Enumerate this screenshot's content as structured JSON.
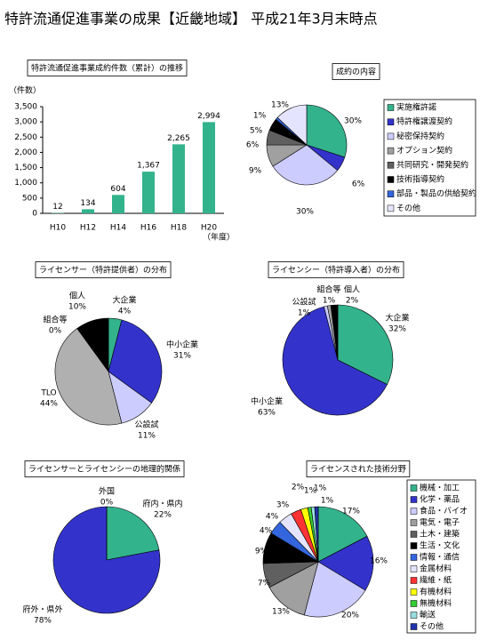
{
  "title": "特許流通促進事業の成果【近畿地域】 平成21年3月末時点",
  "chart_data": [
    {
      "type": "bar",
      "title": "特許流通促進事業成約件数（累計）の推移",
      "y_label": "（件数）",
      "x_label": "（年度）",
      "categories": [
        "H10",
        "H12",
        "H14",
        "H16",
        "H18",
        "H20"
      ],
      "values": [
        12,
        134,
        604,
        1367,
        2265,
        2994
      ],
      "value_labels": [
        "12",
        "134",
        "604",
        "1,367",
        "2,265",
        "2,994"
      ],
      "color": "#33b38c",
      "ylim": [
        0,
        3500
      ],
      "yticks": [
        0,
        500,
        {
          "value": 1000,
          "label": "1,000"
        },
        {
          "value": 1500,
          "label": "1,500"
        },
        {
          "value": 2000,
          "label": "2,000"
        },
        {
          "value": 2500,
          "label": "2,500"
        },
        {
          "value": 3000,
          "label": "3,000"
        },
        {
          "value": 3500,
          "label": "3,500"
        }
      ]
    },
    {
      "type": "pie",
      "title": "成約の内容",
      "legend": true,
      "categories": [
        "実施権許諾",
        "特許権譲渡契約",
        "秘密保持契約",
        "オプション契約",
        "共同研究・開発契約",
        "技術指導契約",
        "部品・製品の供給契約",
        "その他"
      ],
      "values": [
        30,
        6,
        30,
        9,
        6,
        5,
        1,
        13
      ],
      "value_labels": [
        "30%",
        "6%",
        "30%",
        "9%",
        "6%",
        "5%",
        "1%",
        "13%"
      ],
      "colors": [
        "#33b38c",
        "#3333cc",
        "#ccccff",
        "#a0a0a0",
        "#606060",
        "#000000",
        "#3366dd",
        "#e4e4ff"
      ]
    },
    {
      "type": "pie",
      "title": "ライセンサー（特許提供者）の分布",
      "legend": false,
      "categories": [
        "大企業",
        "中小企業",
        "公設試",
        "TLO",
        "組合等",
        "個人"
      ],
      "values": [
        4,
        31,
        11,
        44,
        0,
        10
      ],
      "value_labels": [
        "4%",
        "31%",
        "11%",
        "44%",
        "0%",
        "10%"
      ],
      "colors": [
        "#33b38c",
        "#3333cc",
        "#ccccff",
        "#b0b0b0",
        "#ffffff",
        "#000000"
      ]
    },
    {
      "type": "pie",
      "title": "ライセンシー（特許導入者）の分布",
      "legend": false,
      "categories": [
        "大企業",
        "中小企業",
        "公設試",
        "組合等",
        "個人"
      ],
      "values": [
        32,
        63,
        1,
        1,
        2
      ],
      "value_labels": [
        "32%",
        "63%",
        "1%",
        "1%",
        "2%"
      ],
      "colors": [
        "#33b38c",
        "#3333cc",
        "#ccccff",
        "#a0a0a0",
        "#000000"
      ]
    },
    {
      "type": "pie",
      "title": "ライセンサーとライセンシーの地理的関係",
      "legend": false,
      "categories": [
        "府内・県内",
        "府外・県外",
        "外国"
      ],
      "values": [
        22,
        78,
        0
      ],
      "value_labels": [
        "22%",
        "78%",
        "0%"
      ],
      "colors": [
        "#33b38c",
        "#3333cc",
        "#ccccff"
      ]
    },
    {
      "type": "pie",
      "title": "ライセンスされた技術分野",
      "legend": true,
      "categories": [
        "機械・加工",
        "化学・薬品",
        "食品・バイオ",
        "電気・電子",
        "土木・建築",
        "生活・文化",
        "情報・通信",
        "金属材料",
        "繊維・紙",
        "有機材料",
        "無機材料",
        "輸送",
        "その他"
      ],
      "values": [
        17,
        16,
        20,
        13,
        7,
        9,
        4,
        4,
        3,
        2,
        1,
        1,
        1
      ],
      "value_labels": [
        "17%",
        "16%",
        "20%",
        "13%",
        "7%",
        "9%",
        "4%",
        "4%",
        "3%",
        "2%",
        "1%",
        "1%",
        "1%"
      ],
      "colors": [
        "#33b38c",
        "#3333cc",
        "#ccccff",
        "#a0a0a0",
        "#606060",
        "#000000",
        "#3366dd",
        "#e4e4ff",
        "#ff3333",
        "#ffff00",
        "#33cc33",
        "#99dddd",
        "#2233aa"
      ]
    }
  ]
}
